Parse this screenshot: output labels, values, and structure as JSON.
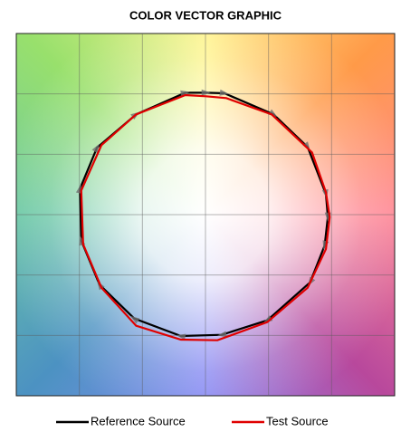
{
  "chart_data": {
    "type": "line",
    "title": "COLOR VECTOR GRAPHIC",
    "xlim": [
      -3,
      3
    ],
    "ylim": [
      -3,
      3
    ],
    "xticks": [
      -2,
      -1,
      0,
      1,
      2
    ],
    "yticks": [
      -2,
      -1,
      0,
      1,
      2
    ],
    "grid": true,
    "closed": true,
    "legend": "bottom",
    "series": [
      {
        "name": "Reference Source",
        "color": "#000000",
        "x": [
          -0.32,
          0.01,
          0.3,
          1.08,
          1.62,
          1.91,
          1.94,
          1.89,
          1.66,
          0.98,
          0.26,
          -0.39,
          -1.13,
          -1.68,
          -1.97,
          -1.99,
          -1.72,
          -1.1
        ],
        "values": [
          2.02,
          2.02,
          2.01,
          1.66,
          1.12,
          0.34,
          -0.04,
          -0.51,
          -1.12,
          -1.75,
          -1.99,
          -2.01,
          -1.72,
          -1.16,
          -0.43,
          0.43,
          1.11,
          1.66
        ]
      },
      {
        "name": "Test Source",
        "color": "#e00000",
        "x": [
          -0.32,
          0.01,
          0.33,
          1.05,
          1.69,
          1.91,
          1.97,
          1.91,
          1.62,
          0.98,
          0.19,
          -0.39,
          -1.1,
          -1.65,
          -1.94,
          -1.97,
          -1.65,
          -1.1
        ],
        "values": [
          1.98,
          1.96,
          1.93,
          1.66,
          1.03,
          0.37,
          -0.04,
          -0.57,
          -1.21,
          -1.78,
          -2.08,
          -2.07,
          -1.84,
          -1.21,
          -0.49,
          0.4,
          1.15,
          1.66
        ]
      }
    ]
  }
}
